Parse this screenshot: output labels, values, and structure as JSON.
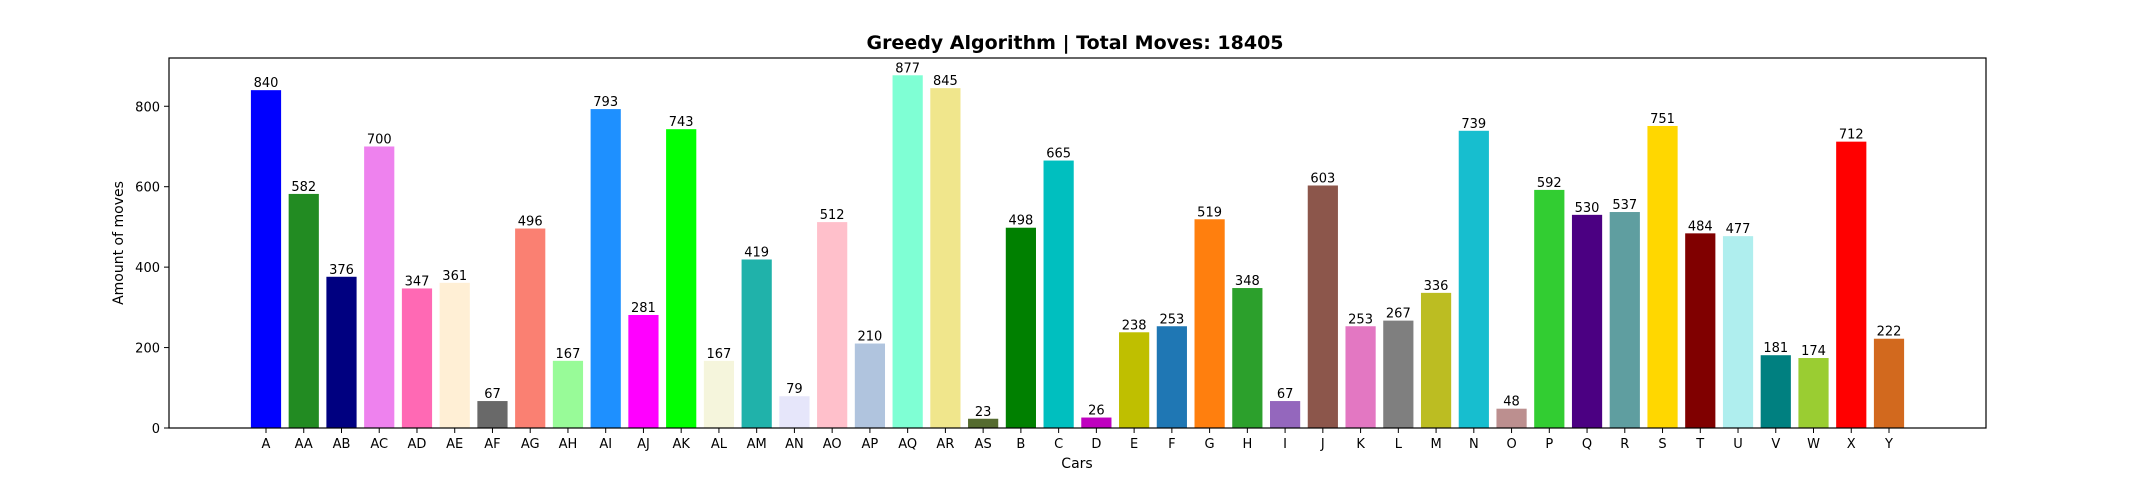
{
  "chart_data": {
    "type": "bar",
    "title": "Greedy Algorithm | Total Moves: 18405",
    "xlabel": "Cars",
    "ylabel": "Amount of moves",
    "ylim": [
      0,
      920
    ],
    "yticks": [
      0,
      200,
      400,
      600,
      800
    ],
    "grid": false,
    "categories": [
      "A",
      "AA",
      "AB",
      "AC",
      "AD",
      "AE",
      "AF",
      "AG",
      "AH",
      "AI",
      "AJ",
      "AK",
      "AL",
      "AM",
      "AN",
      "AO",
      "AP",
      "AQ",
      "AR",
      "AS",
      "B",
      "C",
      "D",
      "E",
      "F",
      "G",
      "H",
      "I",
      "J",
      "K",
      "L",
      "M",
      "N",
      "O",
      "P",
      "Q",
      "R",
      "S",
      "T",
      "U",
      "V",
      "W",
      "X",
      "Y"
    ],
    "values": [
      840,
      582,
      376,
      700,
      347,
      361,
      67,
      496,
      167,
      793,
      281,
      743,
      167,
      419,
      79,
      512,
      210,
      877,
      845,
      23,
      498,
      665,
      26,
      238,
      253,
      519,
      348,
      67,
      603,
      253,
      267,
      336,
      739,
      48,
      592,
      530,
      537,
      751,
      484,
      477,
      181,
      174,
      712,
      222
    ],
    "colors": [
      "#0000ff",
      "#228b22",
      "#000080",
      "#ee82ee",
      "#ff69b4",
      "#ffefd5",
      "#696969",
      "#fa8072",
      "#98fb98",
      "#1e90ff",
      "#ff00ff",
      "#00ff00",
      "#f5f5dc",
      "#20b2aa",
      "#e6e6fa",
      "#ffc0cb",
      "#b0c4de",
      "#7fffd4",
      "#f0e68c",
      "#556b2f",
      "#008000",
      "#00bfbf",
      "#bf00bf",
      "#bfbf00",
      "#1f77b4",
      "#ff7f0e",
      "#2ca02c",
      "#9467bd",
      "#8c564b",
      "#e377c2",
      "#7f7f7f",
      "#bcbd22",
      "#17becf",
      "#bc8f8f",
      "#32cd32",
      "#4b0082",
      "#5f9ea0",
      "#ffd700",
      "#800000",
      "#afeeee",
      "#008080",
      "#9acd32",
      "#ff0000",
      "#d2691e"
    ]
  }
}
